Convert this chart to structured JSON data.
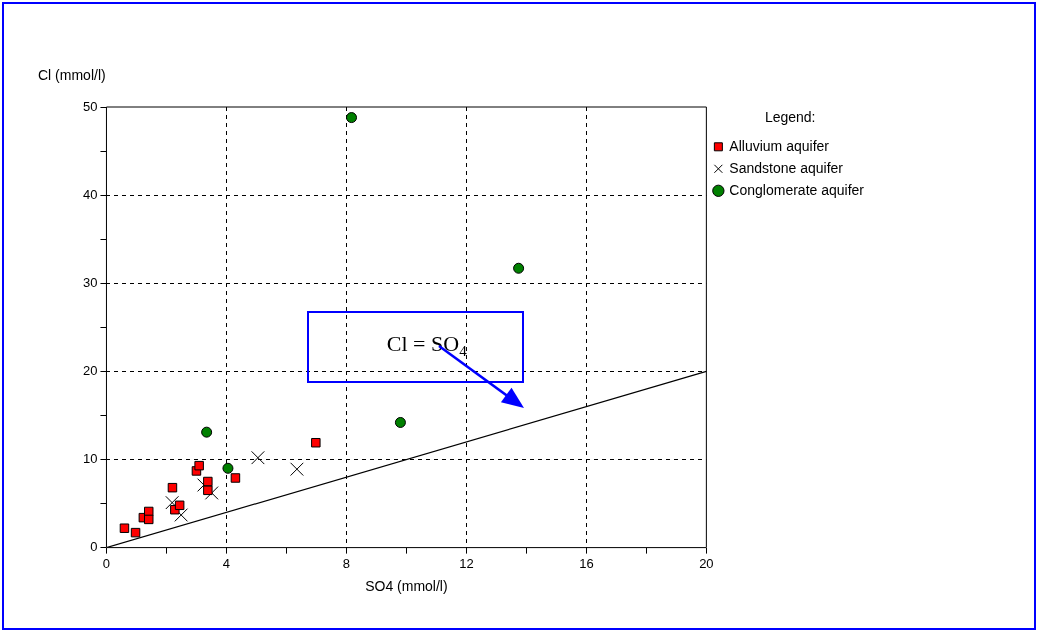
{
  "chart_data": {
    "type": "scatter",
    "xlabel": "SO4 (mmol/l)",
    "ylabel": "Cl (mmol/l)",
    "legend_title": "Legend:",
    "legend": "right",
    "grid": true,
    "xlim": [
      0,
      20
    ],
    "xticks": [
      0,
      {
        "value": 2,
        "label": null
      },
      4,
      {
        "value": 6,
        "label": null
      },
      8,
      {
        "value": 10,
        "label": null
      },
      12,
      {
        "value": 14,
        "label": null
      },
      16,
      {
        "value": 18,
        "label": null
      },
      20
    ],
    "ylim": [
      0,
      50
    ],
    "yticks": [
      0,
      {
        "value": 5,
        "label": null
      },
      10,
      {
        "value": 15,
        "label": null
      },
      20,
      {
        "value": 25,
        "label": null
      },
      30,
      {
        "value": 35,
        "label": null
      },
      40,
      {
        "value": 45,
        "label": null
      },
      50
    ],
    "series": [
      {
        "name": "Alluvium aquifer",
        "color": "#ff0000",
        "marker": "square",
        "x": [
          0.6,
          0.97,
          1.23,
          1.41,
          1.41,
          2.2,
          2.28,
          2.44,
          3.0,
          3.09,
          3.38,
          3.38,
          4.3,
          6.98
        ],
        "values": [
          2.2,
          1.7,
          3.4,
          4.1,
          3.2,
          6.8,
          4.3,
          4.8,
          8.7,
          9.3,
          7.5,
          6.5,
          7.9,
          11.9
        ]
      },
      {
        "name": "Sandstone aquifer",
        "color": "#000000",
        "marker": "cross",
        "x": [
          2.19,
          2.49,
          3.25,
          3.51,
          5.05,
          6.35
        ],
        "values": [
          5.1,
          3.7,
          7.1,
          6.2,
          10.2,
          8.9
        ]
      },
      {
        "name": "Conglomerate aquifer",
        "color": "#008000",
        "marker": "circle",
        "x": [
          8.17,
          13.74,
          9.8,
          3.34,
          4.05
        ],
        "values": [
          48.8,
          31.7,
          14.2,
          13.1,
          9.0
        ]
      },
      {
        "type": "line",
        "color": "#000000",
        "marker": "none",
        "line_style": "solid",
        "x": [
          0,
          20
        ],
        "values": [
          0,
          20
        ]
      }
    ],
    "annotations": [
      "Cl = SO$_{4}$"
    ]
  }
}
